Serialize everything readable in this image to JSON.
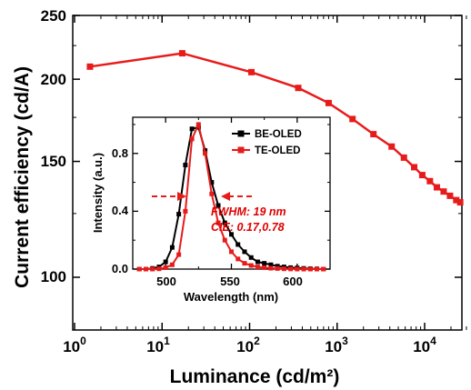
{
  "chart_data": [
    {
      "type": "line",
      "xscale": "log",
      "yscale": "log",
      "xlim": [
        1,
        30000
      ],
      "ylim": [
        80,
        250
      ],
      "xlabel": "Luminance (cd/m²)",
      "ylabel": "Current efficiency (cd/A)",
      "x_tick_labels": [
        {
          "base": "10",
          "exp": "0"
        },
        {
          "base": "10",
          "exp": "1"
        },
        {
          "base": "10",
          "exp": "2"
        },
        {
          "base": "10",
          "exp": "3"
        },
        {
          "base": "10",
          "exp": "4"
        }
      ],
      "y_tick_labels": [
        "100",
        "150",
        "200",
        "250"
      ],
      "series": [
        {
          "color": "#e81b1b",
          "marker": "square",
          "x": [
            1.5,
            17,
            105,
            360,
            800,
            1500,
            2600,
            4200,
            5800,
            7600,
            9400,
            11500,
            13800,
            16500,
            19500,
            23000,
            25500
          ],
          "y": [
            209,
            219,
            205,
            194,
            184,
            174,
            165,
            158,
            152,
            147,
            143,
            140,
            137,
            135,
            133,
            131,
            130
          ]
        }
      ]
    },
    {
      "type": "line",
      "xlim": [
        475,
        625
      ],
      "ylim": [
        0,
        1.05
      ],
      "xlabel": "Wavelength (nm)",
      "ylabel": "Intensity (a.u.)",
      "x_tick_labels": [
        "500",
        "550",
        "600"
      ],
      "y_tick_labels": [
        "0.0",
        "0.4",
        "0.8"
      ],
      "legend_position": "top-right",
      "series": [
        {
          "name": "BE-OLED",
          "color": "#000000",
          "x": [
            480,
            485,
            490,
            495,
            500,
            505,
            510,
            515,
            520,
            525,
            530,
            535,
            540,
            545,
            550,
            555,
            560,
            565,
            570,
            575,
            580,
            585,
            590,
            595,
            600,
            605,
            610,
            615,
            620
          ],
          "y": [
            0.0,
            0.0,
            0.005,
            0.015,
            0.05,
            0.15,
            0.38,
            0.72,
            0.97,
            0.98,
            0.82,
            0.6,
            0.44,
            0.32,
            0.24,
            0.17,
            0.12,
            0.08,
            0.05,
            0.04,
            0.03,
            0.02,
            0.015,
            0.01,
            0.008,
            0.005,
            0.003,
            0.002,
            0.0
          ]
        },
        {
          "name": "TE-OLED",
          "color": "#e81b1b",
          "x": [
            480,
            485,
            490,
            495,
            500,
            505,
            510,
            515,
            520,
            525,
            530,
            535,
            540,
            545,
            550,
            555,
            560,
            565,
            570,
            575,
            580,
            585,
            590,
            595,
            600,
            605,
            610,
            615,
            620
          ],
          "y": [
            0.0,
            0.0,
            0.0,
            0.002,
            0.01,
            0.03,
            0.1,
            0.4,
            0.9,
            1.0,
            0.8,
            0.52,
            0.32,
            0.2,
            0.12,
            0.07,
            0.04,
            0.025,
            0.015,
            0.01,
            0.006,
            0.004,
            0.002,
            0.001,
            0.0,
            0.0,
            0.0,
            0.0,
            0.0
          ]
        }
      ],
      "annotations": [
        "FWHM: 19 nm",
        "CIE: 0.17,0.78"
      ]
    }
  ]
}
